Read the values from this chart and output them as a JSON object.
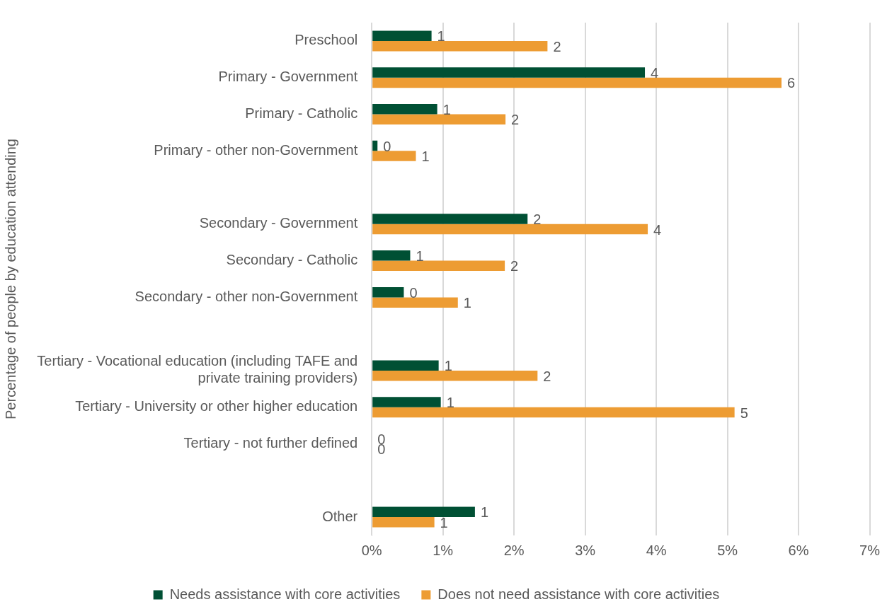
{
  "chart_data": {
    "type": "bar",
    "orientation": "horizontal",
    "ylabel": "Percentage of people by education attending",
    "categories": [
      "Preschool",
      "Primary - Government",
      "Primary - Catholic",
      "Primary - other non-Government",
      null,
      "Secondary - Government",
      "Secondary - Catholic",
      "Secondary - other non-Government",
      null,
      "Tertiary - Vocational education (including TAFE and private training providers)",
      "Tertiary - University or other higher education",
      "Tertiary - not further defined",
      null,
      "Other"
    ],
    "series": [
      {
        "name": "Needs assistance with core activities",
        "color": "#005034",
        "values": [
          0.84,
          3.84,
          0.92,
          0.08,
          null,
          2.19,
          0.54,
          0.45,
          null,
          0.94,
          0.97,
          0,
          null,
          1.45
        ],
        "value_labels": [
          "1",
          "4",
          "1",
          "0",
          null,
          "2",
          "1",
          "0",
          null,
          "1",
          "1",
          "0",
          null,
          "1"
        ]
      },
      {
        "name": "Does not need assistance with core activities",
        "color": "#ed9c33",
        "values": [
          2.47,
          5.76,
          1.88,
          0.62,
          null,
          3.88,
          1.87,
          1.21,
          null,
          2.33,
          5.1,
          0,
          null,
          0.88
        ],
        "value_labels": [
          "2",
          "6",
          "2",
          "1",
          null,
          "4",
          "2",
          "1",
          null,
          "2",
          "5",
          "0",
          null,
          "1"
        ]
      }
    ],
    "xlim": [
      0,
      7
    ],
    "xticks": [
      {
        "value": 0,
        "label": "0%"
      },
      {
        "value": 1,
        "label": "1%"
      },
      {
        "value": 2,
        "label": "2%"
      },
      {
        "value": 3,
        "label": "3%"
      },
      {
        "value": 4,
        "label": "4%"
      },
      {
        "value": 5,
        "label": "5%"
      },
      {
        "value": 6,
        "label": "6%"
      },
      {
        "value": 7,
        "label": "7%"
      }
    ],
    "grid": "x",
    "legend": "bottom"
  }
}
